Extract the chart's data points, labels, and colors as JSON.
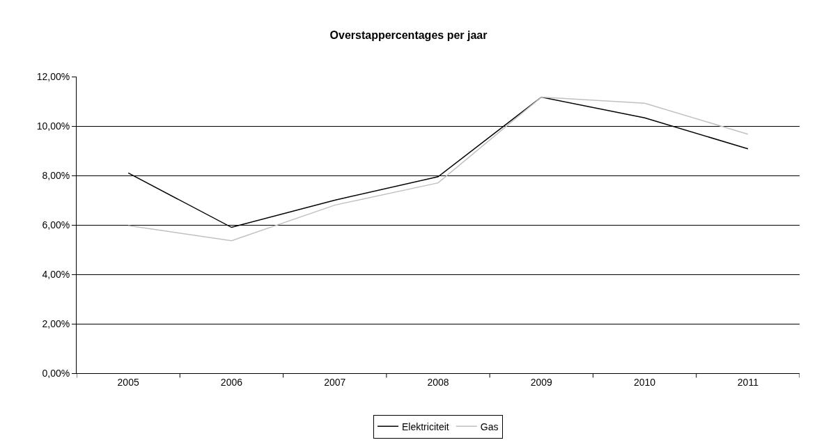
{
  "chart_data": {
    "type": "line",
    "title": "Overstappercentages per jaar",
    "categories": [
      "2005",
      "2006",
      "2007",
      "2008",
      "2009",
      "2010",
      "2011"
    ],
    "series": [
      {
        "name": "Elektriciteit",
        "color": "#000000",
        "values": [
          8.1,
          5.9,
          7.0,
          7.95,
          11.17,
          10.33,
          9.08
        ]
      },
      {
        "name": "Gas",
        "color": "#c0c0c0",
        "values": [
          5.97,
          5.36,
          6.8,
          7.7,
          11.17,
          10.92,
          9.67
        ]
      }
    ],
    "ylim": [
      0,
      12
    ],
    "yticks": [
      {
        "value": 0,
        "label": "0,00%"
      },
      {
        "value": 2,
        "label": "2,00%"
      },
      {
        "value": 4,
        "label": "4,00%"
      },
      {
        "value": 6,
        "label": "6,00%"
      },
      {
        "value": 8,
        "label": "8,00%"
      },
      {
        "value": 10,
        "label": "10,00%"
      },
      {
        "value": 12,
        "label": "12,00%"
      }
    ],
    "grid": "y",
    "legend": "bottom",
    "marker": "none",
    "line_style": "solid"
  }
}
